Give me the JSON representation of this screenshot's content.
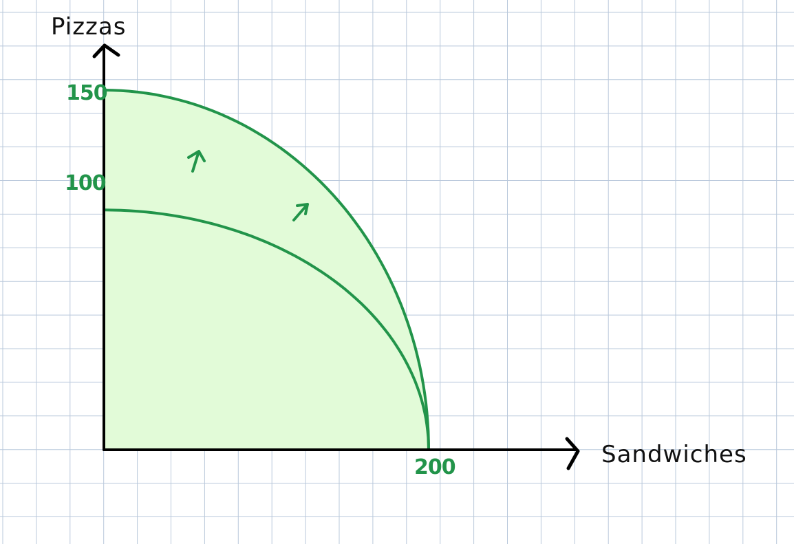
{
  "chart_data": {
    "type": "area",
    "title": "",
    "xlabel": "Sandwiches",
    "ylabel": "Pizzas",
    "x_ticks": [
      {
        "value": 200,
        "label": "200"
      }
    ],
    "y_ticks": [
      {
        "value": 100,
        "label": "100"
      },
      {
        "value": 150,
        "label": "150"
      }
    ],
    "xlim": [
      0,
      300
    ],
    "ylim": [
      0,
      170
    ],
    "grid": true,
    "curves": [
      {
        "x_intercept": 200,
        "y_intercept": 100,
        "points": [
          [
            0,
            100
          ],
          [
            50,
            96
          ],
          [
            100,
            84
          ],
          [
            150,
            57
          ],
          [
            180,
            33
          ],
          [
            200,
            0
          ]
        ]
      },
      {
        "x_intercept": 200,
        "y_intercept": 150,
        "points": [
          [
            0,
            150
          ],
          [
            50,
            142
          ],
          [
            100,
            121
          ],
          [
            150,
            83
          ],
          [
            180,
            48
          ],
          [
            200,
            0
          ]
        ]
      }
    ],
    "shift_arrows": 2,
    "colors": {
      "curve": "#22944a",
      "fill": "#e2fbd8",
      "axis": "#000000",
      "grid": "#b9c8db"
    }
  }
}
